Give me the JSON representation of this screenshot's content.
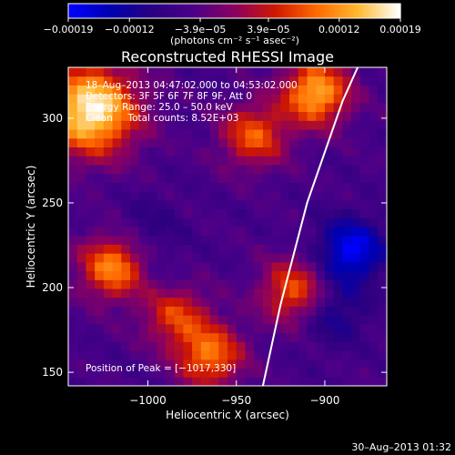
{
  "chart_data": {
    "type": "heatmap",
    "title": "Reconstructed RHESSI Image",
    "xlabel": "Heliocentric X (arcsec)",
    "ylabel": "Heliocentric Y (arcsec)",
    "xlim": [
      -1045,
      -865
    ],
    "ylim": [
      142,
      330
    ],
    "x_ticks": [
      {
        "value": -1000,
        "label": "−1000"
      },
      {
        "value": -950,
        "label": "−950"
      },
      {
        "value": -900,
        "label": "−900"
      }
    ],
    "y_ticks": [
      {
        "value": 150,
        "label": "150"
      },
      {
        "value": 200,
        "label": "200"
      },
      {
        "value": 250,
        "label": "250"
      },
      {
        "value": 300,
        "label": "300"
      }
    ],
    "colorbar": {
      "range": [
        -0.00019,
        0.00019
      ],
      "ticks": [
        {
          "value": -0.00019,
          "label": "−0.00019"
        },
        {
          "value": -0.00012,
          "label": "−0.00012"
        },
        {
          "value": -3.9e-05,
          "label": "−3.9e−05"
        },
        {
          "value": 3.9e-05,
          "label": "3.9e−05"
        },
        {
          "value": 0.00012,
          "label": "0.00012"
        },
        {
          "value": 0.00019,
          "label": "0.00019"
        }
      ],
      "units": "(photons cm⁻² s⁻¹ asec⁻²)",
      "colors": [
        "#0000ff",
        "#0000b0",
        "#2a0080",
        "#4b0088",
        "#8a0060",
        "#d01800",
        "#ff6a00",
        "#ffb830",
        "#ffffff"
      ]
    },
    "annotations": [
      "18–Aug–2013 04:47:02.000 to 04:53:02.000",
      "Detectors: 3F 5F 6F 7F 8F 9F, Att 0",
      "Energy Range: 25.0 – 50.0 keV",
      "Clean     Total counts: 8.52E+03"
    ],
    "peak_label": "Position of Peak = [−1017,330]",
    "peak_position": [
      -1017,
      330
    ],
    "limb_curve": [
      [
        -935,
        142
      ],
      [
        -925,
        190
      ],
      [
        -910,
        250
      ],
      [
        -890,
        310
      ],
      [
        -878,
        338
      ]
    ],
    "hot_spots": [
      {
        "x": -1032,
        "y": 305,
        "intensity": 0.00019
      },
      {
        "x": -905,
        "y": 315,
        "intensity": 0.00014
      },
      {
        "x": -1020,
        "y": 212,
        "intensity": 0.00011
      },
      {
        "x": -965,
        "y": 160,
        "intensity": 0.0001
      },
      {
        "x": -940,
        "y": 290,
        "intensity": 8e-05
      },
      {
        "x": -918,
        "y": 198,
        "intensity": 8e-05
      },
      {
        "x": -985,
        "y": 185,
        "intensity": 7e-05
      }
    ],
    "cold_spots": [
      {
        "x": -885,
        "y": 222,
        "intensity": -0.00019
      },
      {
        "x": -895,
        "y": 185,
        "intensity": -0.00012
      },
      {
        "x": -1000,
        "y": 235,
        "intensity": -9e-05
      },
      {
        "x": -990,
        "y": 200,
        "intensity": -8e-05
      }
    ],
    "grid": false
  },
  "footer_timestamp": "30–Aug–2013 01:32"
}
